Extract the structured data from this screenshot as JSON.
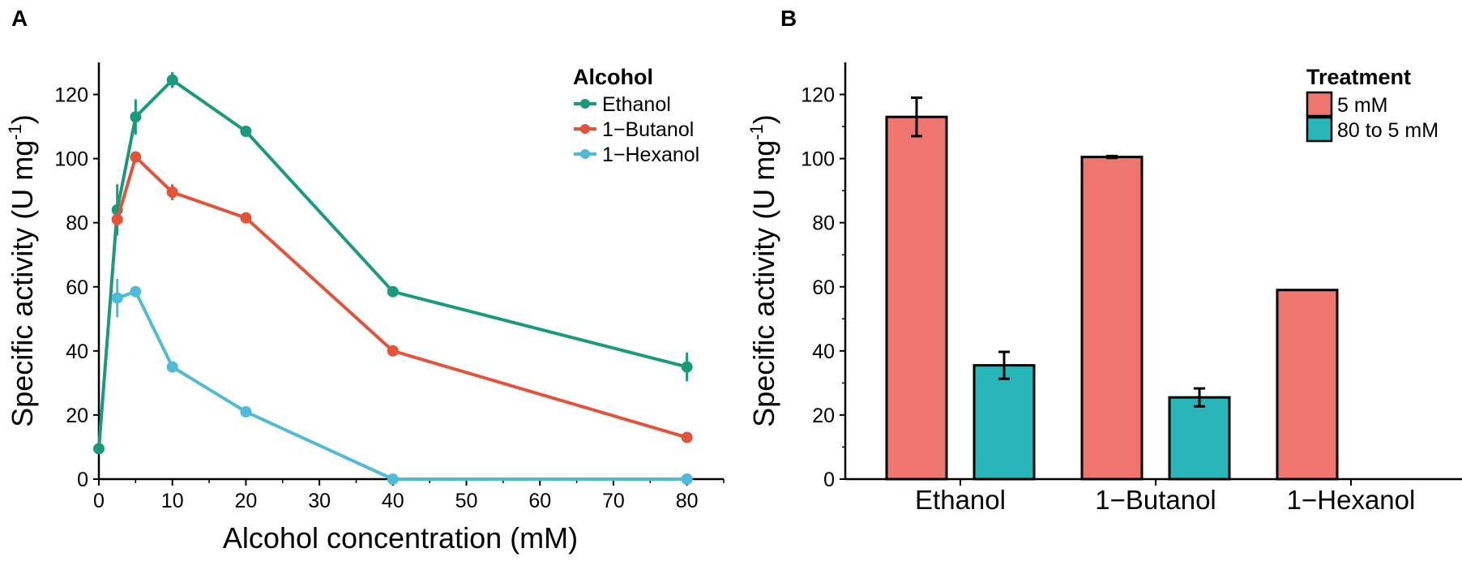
{
  "chart_data": [
    {
      "panel": "A",
      "type": "line",
      "xlabel": "Alcohol concentration (mM)",
      "ylabel": "Specific activity (U mg",
      "ylabel_superscript": "-1",
      "ylabel_close": ")",
      "xlim": [
        0,
        85
      ],
      "ylim": [
        0,
        130
      ],
      "xticks": [
        0,
        10,
        20,
        30,
        40,
        50,
        60,
        70,
        80
      ],
      "yticks": [
        0,
        20,
        40,
        60,
        80,
        100,
        120
      ],
      "legend_title": "Alcohol",
      "legend_position": "top-right",
      "series": [
        {
          "name": "Ethanol",
          "color": "#1a9a7c",
          "x": [
            0,
            2.5,
            5,
            10,
            20,
            40,
            80
          ],
          "y": [
            9.5,
            84,
            113,
            124.5,
            108.5,
            58.5,
            35
          ],
          "err": [
            0,
            8,
            5.5,
            2.5,
            1,
            1,
            4.5
          ]
        },
        {
          "name": "1−Butanol",
          "color": "#e2533a",
          "x": [
            2.5,
            5,
            10,
            20,
            40,
            80
          ],
          "y": [
            81,
            100.5,
            89.5,
            81.5,
            40,
            13
          ],
          "err": [
            2,
            1.5,
            2.5,
            1,
            0.8,
            0.8
          ]
        },
        {
          "name": "1−Hexanol",
          "color": "#4fbbd6",
          "x": [
            2.5,
            5,
            10,
            20,
            40,
            80
          ],
          "y": [
            56.5,
            58.5,
            35,
            21,
            0,
            0
          ],
          "err": [
            6,
            1.5,
            1,
            1,
            0.5,
            0.5
          ]
        }
      ]
    },
    {
      "panel": "B",
      "type": "bar",
      "ylabel": "Specific activity (U mg",
      "ylabel_superscript": "-1",
      "ylabel_close": ")",
      "xlabel": "",
      "ylim": [
        0,
        130
      ],
      "yticks": [
        0,
        20,
        40,
        60,
        80,
        100,
        120
      ],
      "categories": [
        "Ethanol",
        "1−Butanol",
        "1−Hexanol"
      ],
      "legend_title": "Treatment",
      "legend_position": "top-right",
      "series": [
        {
          "name": "5 mM",
          "color": "#ef766e",
          "values": [
            113,
            100.5,
            59
          ],
          "err": [
            6,
            0.3,
            0
          ]
        },
        {
          "name": "80 to 5 mM",
          "color": "#29b6b9",
          "values": [
            35.5,
            25.5,
            0
          ],
          "err": [
            4.2,
            2.8,
            0
          ]
        }
      ]
    }
  ]
}
